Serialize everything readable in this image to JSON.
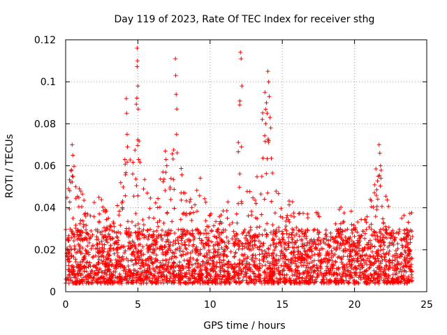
{
  "chart_data": {
    "type": "scatter",
    "title": "Day 119 of 2023, Rate Of TEC Index for receiver sthg",
    "xlabel": "GPS time / hours",
    "ylabel": "ROTI / TECUs",
    "xlim": [
      0,
      25
    ],
    "ylim": [
      0,
      0.12
    ],
    "x_ticks": [
      0,
      5,
      10,
      15,
      20,
      25
    ],
    "x_tick_labels": [
      "0",
      "5",
      "10",
      "15",
      "20",
      "25"
    ],
    "y_ticks": [
      0,
      0.02,
      0.04,
      0.06,
      0.08,
      0.1,
      0.12
    ],
    "y_tick_labels": [
      "0",
      "0.02",
      "0.04",
      "0.06",
      "0.08",
      "0.1",
      "0.12"
    ],
    "grid": true,
    "marker": "+",
    "series": [
      {
        "name": "ROTI",
        "color": "#ff0000",
        "x_range": [
          0,
          24
        ],
        "typical_band": [
          0.004,
          0.03
        ],
        "envelope": [
          [
            0.0,
            0.045
          ],
          [
            0.5,
            0.065
          ],
          [
            1.0,
            0.05
          ],
          [
            1.5,
            0.04
          ],
          [
            2.0,
            0.045
          ],
          [
            2.5,
            0.045
          ],
          [
            3.0,
            0.035
          ],
          [
            3.5,
            0.04
          ],
          [
            4.0,
            0.06
          ],
          [
            4.3,
            0.09
          ],
          [
            4.6,
            0.065
          ],
          [
            4.95,
            0.115
          ],
          [
            5.3,
            0.06
          ],
          [
            5.8,
            0.045
          ],
          [
            6.3,
            0.045
          ],
          [
            6.9,
            0.065
          ],
          [
            7.2,
            0.05
          ],
          [
            7.6,
            0.11
          ],
          [
            8.0,
            0.06
          ],
          [
            8.5,
            0.045
          ],
          [
            9.3,
            0.055
          ],
          [
            10.0,
            0.04
          ],
          [
            10.6,
            0.035
          ],
          [
            11.2,
            0.048
          ],
          [
            11.7,
            0.035
          ],
          [
            12.15,
            0.114
          ],
          [
            12.7,
            0.05
          ],
          [
            13.2,
            0.055
          ],
          [
            13.7,
            0.095
          ],
          [
            14.0,
            0.105
          ],
          [
            14.5,
            0.055
          ],
          [
            15.0,
            0.04
          ],
          [
            15.5,
            0.045
          ],
          [
            16.5,
            0.04
          ],
          [
            17.5,
            0.038
          ],
          [
            18.5,
            0.035
          ],
          [
            19.5,
            0.045
          ],
          [
            20.0,
            0.035
          ],
          [
            20.5,
            0.035
          ],
          [
            21.0,
            0.045
          ],
          [
            21.5,
            0.06
          ],
          [
            21.7,
            0.068
          ],
          [
            22.2,
            0.045
          ],
          [
            22.7,
            0.035
          ],
          [
            23.2,
            0.035
          ],
          [
            24.0,
            0.04
          ]
        ],
        "outliers": [
          [
            4.2,
            0.092
          ],
          [
            4.22,
            0.085
          ],
          [
            4.25,
            0.075
          ],
          [
            4.28,
            0.069
          ],
          [
            4.1,
            0.063
          ],
          [
            4.95,
            0.116
          ],
          [
            4.97,
            0.11
          ],
          [
            5.0,
            0.098
          ],
          [
            5.02,
            0.087
          ],
          [
            5.05,
            0.063
          ],
          [
            6.9,
            0.067
          ],
          [
            6.95,
            0.063
          ],
          [
            7.0,
            0.06
          ],
          [
            7.6,
            0.111
          ],
          [
            7.62,
            0.103
          ],
          [
            7.65,
            0.094
          ],
          [
            7.7,
            0.087
          ],
          [
            7.68,
            0.075
          ],
          [
            12.1,
            0.114
          ],
          [
            12.15,
            0.111
          ],
          [
            12.2,
            0.098
          ],
          [
            12.05,
            0.089
          ],
          [
            13.8,
            0.095
          ],
          [
            13.9,
            0.09
          ],
          [
            13.95,
            0.085
          ],
          [
            13.85,
            0.08
          ],
          [
            14.0,
            0.105
          ],
          [
            14.05,
            0.1
          ],
          [
            14.1,
            0.093
          ],
          [
            14.15,
            0.083
          ],
          [
            14.2,
            0.078
          ],
          [
            0.45,
            0.07
          ],
          [
            0.5,
            0.065
          ],
          [
            0.4,
            0.058
          ],
          [
            21.7,
            0.07
          ],
          [
            21.75,
            0.066
          ],
          [
            21.8,
            0.06
          ],
          [
            21.65,
            0.055
          ]
        ]
      }
    ]
  }
}
